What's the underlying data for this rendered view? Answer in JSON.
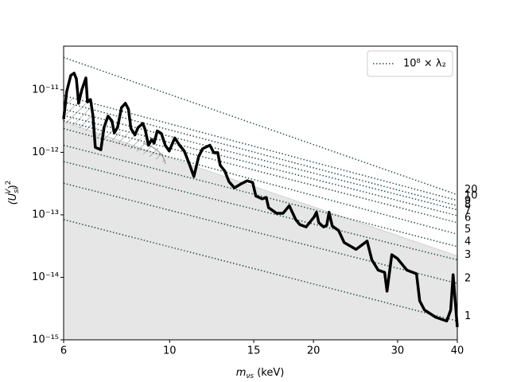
{
  "chart_data": {
    "type": "line",
    "x_label_parts": [
      "m",
      "νs",
      " (keV)"
    ],
    "y_label_parts": [
      "(U",
      "si",
      "V",
      ")",
      "2"
    ],
    "xlim": [
      6,
      40
    ],
    "ylim": [
      1e-15,
      5e-11
    ],
    "log_x": true,
    "log_y": true,
    "xticks": [
      6,
      10,
      15,
      20,
      30,
      40
    ],
    "yticks": [
      {
        "value": 1e-15,
        "label": "10⁻¹⁵"
      },
      {
        "value": 1e-14,
        "label": "10⁻¹⁴"
      },
      {
        "value": 1e-13,
        "label": "10⁻¹³"
      },
      {
        "value": 1e-12,
        "label": "10⁻¹²"
      },
      {
        "value": 1e-11,
        "label": "10⁻¹¹"
      }
    ],
    "legend_label": "10⁸ × λ₂",
    "legend_corner": "upper right",
    "shaded_region": {
      "x": [
        6,
        40
      ],
      "upper": [
        3.1e-12,
        2.2e-14
      ],
      "color": "#e6e6e6"
    },
    "series": [
      {
        "name": "20",
        "x": [
          6,
          40
        ],
        "values": [
          3.3e-11,
          2.1e-13
        ],
        "color": "#2f4f4f"
      },
      {
        "name": "10",
        "x": [
          6,
          40
        ],
        "values": [
          8.1e-12,
          1.7e-13
        ],
        "color": "#2f4f4f"
      },
      {
        "name": "9",
        "x": [
          6,
          40
        ],
        "values": [
          6.4e-12,
          1.4e-13
        ],
        "color": "#2f4f4f"
      },
      {
        "name": "8",
        "x": [
          6,
          40
        ],
        "values": [
          4.9e-12,
          1.2e-13
        ],
        "color": "#2f4f4f"
      },
      {
        "name": "7",
        "x": [
          6,
          40
        ],
        "values": [
          3.9e-12,
          9.7e-14
        ],
        "color": "#2f4f4f"
      },
      {
        "name": "6",
        "x": [
          6,
          40
        ],
        "values": [
          3.2e-12,
          7.5e-14
        ],
        "color": "#2f4f4f"
      },
      {
        "name": "5",
        "x": [
          6,
          40
        ],
        "values": [
          2.4e-12,
          4.9e-14
        ],
        "color": "#2f4f4f"
      },
      {
        "name": "4",
        "x": [
          6,
          40
        ],
        "values": [
          1.3e-12,
          3.1e-14
        ],
        "color": "#2f4f4f"
      },
      {
        "name": "3",
        "x": [
          6,
          40
        ],
        "values": [
          7.1e-13,
          1.9e-14
        ],
        "color": "#2f4f4f"
      },
      {
        "name": "2",
        "x": [
          6,
          40
        ],
        "values": [
          3.2e-13,
          8e-15
        ],
        "color": "#2f4f4f"
      },
      {
        "name": "1",
        "x": [
          6,
          40
        ],
        "values": [
          8.4e-14,
          2e-15
        ],
        "color": "#2f4f4f"
      }
    ],
    "limit_curve": {
      "color": "#000000",
      "x": [
        6.0,
        6.09,
        6.21,
        6.31,
        6.38,
        6.45,
        6.55,
        6.68,
        6.73,
        6.83,
        6.91,
        6.99,
        7.18,
        7.29,
        7.43,
        7.57,
        7.66,
        7.78,
        7.93,
        8.08,
        8.2,
        8.3,
        8.46,
        8.59,
        8.79,
        8.89,
        9.03,
        9.17,
        9.28,
        9.42,
        9.61,
        9.79,
        9.98,
        10.25,
        10.49,
        10.73,
        10.98,
        11.24,
        11.5,
        11.72,
        12.14,
        12.37,
        12.61,
        12.76,
        13.05,
        13.31,
        13.66,
        14.08,
        14.52,
        14.92,
        15.15,
        15.63,
        15.93,
        16.11,
        16.74,
        17.27,
        17.8,
        18.36,
        18.72,
        19.3,
        20.05,
        20.29,
        20.52,
        21.0,
        21.32,
        21.56,
        21.9,
        22.58,
        23.19,
        24.55,
        25.9,
        26.5,
        27.33,
        28.18,
        28.51,
        29.17,
        29.97,
        31.38,
        32.86,
        33.37,
        34.15,
        36.04,
        38.01,
        38.75,
        39.2,
        39.5,
        40.0
      ],
      "values": [
        3.4e-12,
        9.4e-12,
        1.7e-11,
        1.85e-11,
        1.5e-11,
        6.1e-12,
        1e-11,
        1.55e-11,
        6.4e-12,
        7e-12,
        3.9e-12,
        1.2e-12,
        1.1e-12,
        2.5e-12,
        3.8e-12,
        3.2e-12,
        2.05e-12,
        2.5e-12,
        5.2e-12,
        6.1e-12,
        4.9e-12,
        2.4e-12,
        1.9e-12,
        2.5e-12,
        2.9e-12,
        2.3e-12,
        1.3e-12,
        1.6e-12,
        1.4e-12,
        2.2e-12,
        2e-12,
        1.3e-12,
        1.05e-12,
        1.7e-12,
        1.3e-12,
        1.05e-12,
        6.7e-13,
        4.1e-13,
        8.5e-13,
        1.14e-12,
        1.3e-12,
        9.9e-13,
        9.9e-13,
        6.2e-13,
        5e-13,
        3.4e-13,
        2.7e-13,
        3.1e-13,
        3.5e-13,
        3.3e-13,
        2e-13,
        1.8e-13,
        1.9e-13,
        1.3e-13,
        1.06e-13,
        1.06e-13,
        1.4e-13,
        8.4e-14,
        7e-14,
        6.4e-14,
        9.2e-14,
        1.1e-13,
        7.5e-14,
        6.4e-14,
        6.8e-14,
        1.1e-13,
        6.6e-14,
        5.6e-14,
        3.6e-14,
        2.8e-14,
        3.8e-14,
        1.9e-14,
        1.3e-14,
        1.2e-14,
        6e-15,
        2.3e-14,
        2e-14,
        1.3e-14,
        1.14e-14,
        4.2e-15,
        3e-15,
        2.3e-15,
        2e-15,
        3e-15,
        1.1e-14,
        5.3e-15,
        1.6e-15
      ]
    }
  }
}
